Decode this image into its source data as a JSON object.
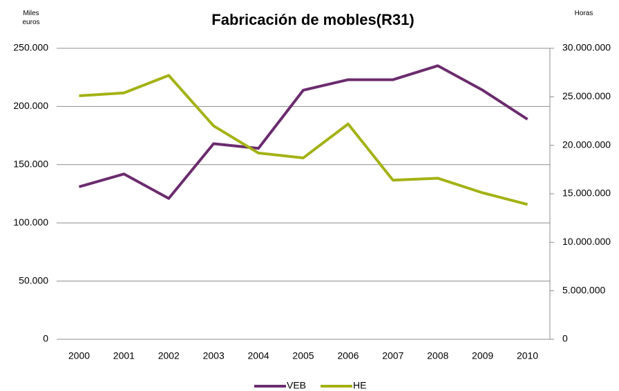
{
  "chart_data": {
    "type": "line",
    "title": "Fabricación de mobles(R31)",
    "y_label": "Miles euros",
    "y2_label": "Horas",
    "categories": [
      "2000",
      "2001",
      "2002",
      "2003",
      "2004",
      "2005",
      "2006",
      "2007",
      "2008",
      "2009",
      "2010"
    ],
    "series": [
      {
        "name": "VEB",
        "color": "#6b2c6e",
        "values": [
          131000,
          142000,
          121000,
          168000,
          164000,
          214000,
          223000,
          223000,
          235000,
          214000,
          189000
        ]
      },
      {
        "name": "HE",
        "color": "#a3b214",
        "axis": "y2",
        "values": [
          25100000,
          25400000,
          27200000,
          22000000,
          19200000,
          18700000,
          22200000,
          16400000,
          16600000,
          15100000,
          13900000
        ]
      }
    ],
    "ylim": [
      0,
      250000
    ],
    "yticks": [
      0,
      {
        "value": 50000,
        "label": "50.000"
      },
      {
        "value": 100000,
        "label": "100.000"
      },
      {
        "value": 150000,
        "label": "150.000"
      },
      {
        "value": 200000,
        "label": "200.000"
      },
      {
        "value": 250000,
        "label": "250.000"
      }
    ],
    "y2lim": [
      0,
      30000000
    ],
    "y2ticks": [
      0,
      {
        "value": 5000000,
        "label": "5.000.000"
      },
      {
        "value": 10000000,
        "label": "10.000.000"
      },
      {
        "value": 15000000,
        "label": "15.000.000"
      },
      {
        "value": 20000000,
        "label": "20.000.000"
      },
      {
        "value": 25000000,
        "label": "25.000.000"
      },
      {
        "value": 30000000,
        "label": "30.000.000"
      }
    ],
    "grid": true,
    "legend": "bottom"
  }
}
